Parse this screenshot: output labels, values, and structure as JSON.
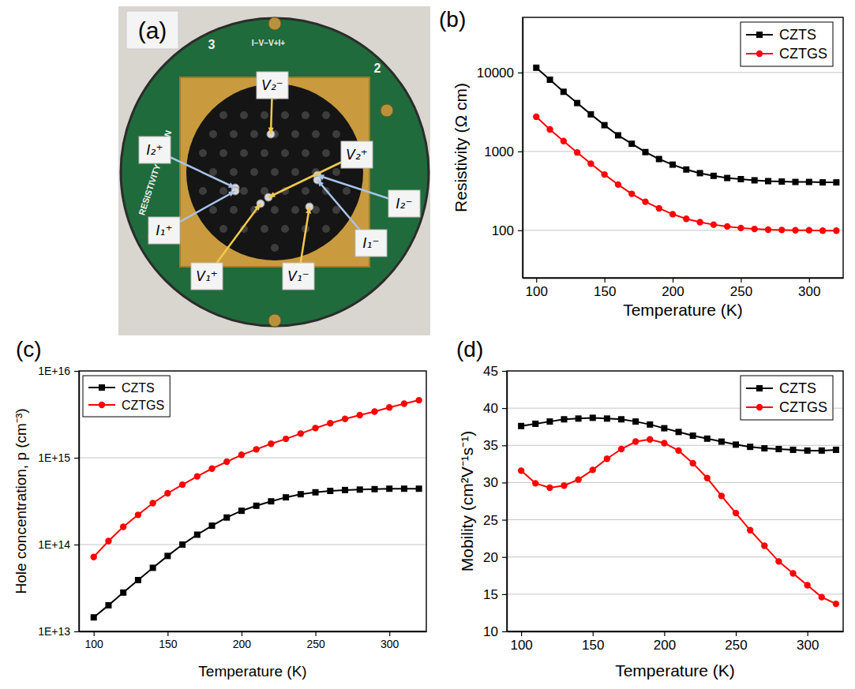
{
  "chart_data": [
    {
      "type": "line",
      "panel": "(b)",
      "xlabel": "Temperature (K)",
      "ylabel": "Resistivity (Ω cm)",
      "log": "y",
      "grid": true,
      "legend": "upper right",
      "xlim": [
        90,
        325
      ],
      "xticks": [
        100,
        150,
        200,
        250,
        300
      ],
      "ylim": [
        25,
        50000
      ],
      "yticks": [
        100,
        1000,
        10000
      ],
      "x": [
        100,
        110,
        120,
        130,
        140,
        150,
        160,
        170,
        180,
        190,
        200,
        210,
        220,
        230,
        240,
        250,
        260,
        270,
        280,
        290,
        300,
        310,
        320
      ],
      "series": [
        {
          "name": "CZTS",
          "color": "#000000",
          "marker": "square",
          "line_style": "solid",
          "values": [
            11500,
            8100,
            5700,
            4100,
            2950,
            2150,
            1600,
            1250,
            980,
            800,
            680,
            590,
            530,
            490,
            460,
            445,
            430,
            420,
            415,
            410,
            410,
            405,
            405
          ]
        },
        {
          "name": "CZTGS",
          "color": "#ff0000",
          "marker": "circle",
          "line_style": "solid",
          "values": [
            2750,
            1900,
            1350,
            970,
            700,
            510,
            380,
            290,
            230,
            190,
            160,
            140,
            127,
            118,
            112,
            107,
            104,
            102,
            101,
            100,
            100,
            99,
            99
          ]
        }
      ]
    },
    {
      "type": "line",
      "panel": "(c)",
      "xlabel": "Temperature (K)",
      "ylabel": "Hole concentration, p (cm⁻³)",
      "log": "y",
      "grid": true,
      "legend": "upper left",
      "xlim": [
        90,
        325
      ],
      "xticks": [
        100,
        150,
        200,
        250,
        300
      ],
      "ylim": [
        10000000000000.0,
        1e+16
      ],
      "yticks": [
        {
          "value": 10000000000000.0,
          "label": "1E+13"
        },
        {
          "value": 100000000000000.0,
          "label": "1E+14"
        },
        {
          "value": 1000000000000000.0,
          "label": "1E+15"
        },
        {
          "value": 1e+16,
          "label": "1E+16"
        }
      ],
      "x": [
        100,
        110,
        120,
        130,
        140,
        150,
        160,
        170,
        180,
        190,
        200,
        210,
        220,
        230,
        240,
        250,
        260,
        270,
        280,
        290,
        300,
        310,
        320
      ],
      "series": [
        {
          "name": "CZTS",
          "color": "#000000",
          "marker": "square",
          "line_style": "solid",
          "values": [
            14500000000000.0,
            20000000000000.0,
            28000000000000.0,
            39000000000000.0,
            54000000000000.0,
            74000000000000.0,
            100000000000000.0,
            130000000000000.0,
            165000000000000.0,
            205000000000000.0,
            245000000000000.0,
            280000000000000.0,
            315000000000000.0,
            350000000000000.0,
            380000000000000.0,
            400000000000000.0,
            415000000000000.0,
            425000000000000.0,
            430000000000000.0,
            435000000000000.0,
            440000000000000.0,
            440000000000000.0,
            440000000000000.0
          ]
        },
        {
          "name": "CZTGS",
          "color": "#ff0000",
          "marker": "circle",
          "line_style": "solid",
          "values": [
            72000000000000.0,
            110000000000000.0,
            160000000000000.0,
            220000000000000.0,
            300000000000000.0,
            390000000000000.0,
            490000000000000.0,
            610000000000000.0,
            750000000000000.0,
            900000000000000.0,
            1080000000000000.0,
            1250000000000000.0,
            1450000000000000.0,
            1650000000000000.0,
            1900000000000000.0,
            2200000000000000.0,
            2500000000000000.0,
            2800000000000000.0,
            3100000000000000.0,
            3400000000000000.0,
            3800000000000000.0,
            4200000000000000.0,
            4600000000000000.0
          ]
        }
      ]
    },
    {
      "type": "line",
      "panel": "(d)",
      "xlabel": "Temperature (K)",
      "ylabel": "Mobility (cm²V⁻¹s⁻¹)",
      "grid": true,
      "legend": "upper right",
      "xlim": [
        90,
        325
      ],
      "xticks": [
        100,
        150,
        200,
        250,
        300
      ],
      "ylim": [
        10,
        45
      ],
      "yticks": [
        10,
        15,
        20,
        25,
        30,
        35,
        40,
        45
      ],
      "x": [
        100,
        110,
        120,
        130,
        140,
        150,
        160,
        170,
        180,
        190,
        200,
        210,
        220,
        230,
        240,
        250,
        260,
        270,
        280,
        290,
        300,
        310,
        320
      ],
      "series": [
        {
          "name": "CZTS",
          "color": "#000000",
          "marker": "square",
          "line_style": "solid",
          "values": [
            37.6,
            37.9,
            38.2,
            38.5,
            38.6,
            38.7,
            38.6,
            38.5,
            38.2,
            37.8,
            37.3,
            36.8,
            36.3,
            35.9,
            35.5,
            35.1,
            34.8,
            34.6,
            34.5,
            34.4,
            34.3,
            34.3,
            34.4
          ]
        },
        {
          "name": "CZTGS",
          "color": "#ff0000",
          "marker": "circle",
          "line_style": "solid",
          "values": [
            31.6,
            29.9,
            29.3,
            29.6,
            30.4,
            31.7,
            33.2,
            34.5,
            35.5,
            35.8,
            35.3,
            34.3,
            32.6,
            30.6,
            28.2,
            25.9,
            23.6,
            21.5,
            19.4,
            17.8,
            16.2,
            14.6,
            13.7
          ]
        }
      ]
    }
  ],
  "photo": {
    "panel": "(a)",
    "board_texts": [
      "3",
      "2",
      "RESISTIVITY OPTION",
      "I−V−V+I+"
    ],
    "contacts": [
      "I₂⁺",
      "V₂⁻",
      "V₂⁺",
      "I₂⁻",
      "I₁⁺",
      "V₁⁺",
      "V₁⁻",
      "I₁⁻"
    ]
  }
}
